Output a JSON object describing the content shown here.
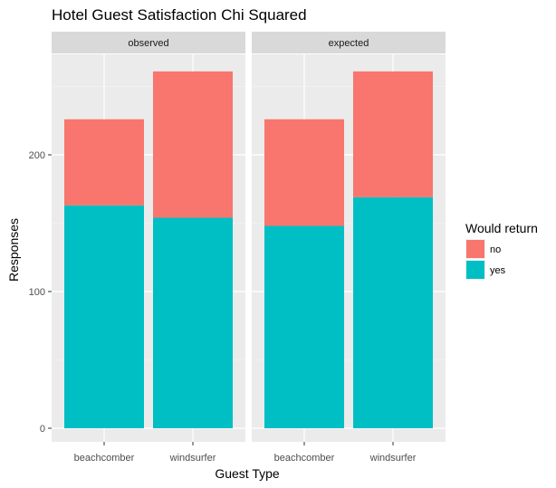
{
  "chart_data": {
    "type": "bar",
    "stacked": true,
    "title": "Hotel Guest Satisfaction Chi Squared",
    "xlabel": "Guest Type",
    "ylabel": "Responses",
    "ylim": [
      0,
      275
    ],
    "yticks": [
      0,
      100,
      200
    ],
    "categories": [
      "beachcomber",
      "windsurfer"
    ],
    "legend": {
      "title": "Would return",
      "position": "right"
    },
    "colors": {
      "no": "#F8766D",
      "yes": "#00BFC4"
    },
    "panel_bg": "#EBEBEB",
    "strip_bg": "#D9D9D9",
    "grid": true,
    "panels": [
      {
        "label": "observed",
        "series": [
          {
            "name": "yes",
            "values": [
              163,
              154
            ]
          },
          {
            "name": "no",
            "values": [
              63,
              107
            ]
          }
        ]
      },
      {
        "label": "expected",
        "series": [
          {
            "name": "yes",
            "values": [
              148,
              169
            ]
          },
          {
            "name": "no",
            "values": [
              78,
              92
            ]
          }
        ]
      }
    ]
  }
}
